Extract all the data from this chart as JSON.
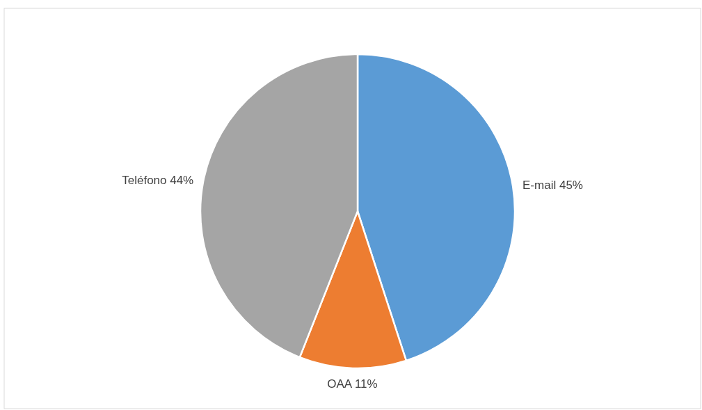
{
  "chart_data": {
    "type": "pie",
    "categories": [
      "E-mail",
      "OAA",
      "Teléfono"
    ],
    "values": [
      45,
      11,
      44
    ],
    "colors": [
      "#5b9bd5",
      "#ed7d31",
      "#a5a5a5"
    ],
    "value_labels": [
      "45%",
      "11%",
      "44%"
    ],
    "legend": false
  }
}
